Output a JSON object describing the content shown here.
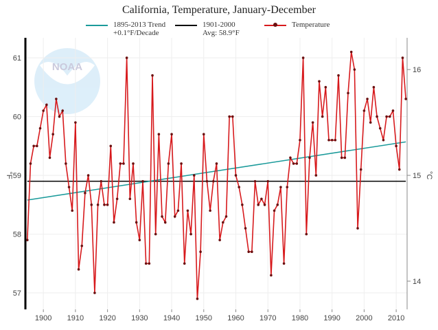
{
  "chart_data": {
    "type": "line",
    "title": "California, Temperature, January-December",
    "ylabel": "°F",
    "ylabel_right": "°C",
    "xlim": [
      1894.4,
      2013.4
    ],
    "ylim": [
      56.72,
      61.34
    ],
    "x_ticks": [
      1900,
      1910,
      1920,
      1930,
      1940,
      1950,
      1960,
      1970,
      1980,
      1990,
      2000,
      2010
    ],
    "y_ticks": [
      57,
      58,
      59,
      60,
      61
    ],
    "y_right_ticks": [
      14,
      15,
      16
    ],
    "grid": true,
    "legend_position": "top",
    "colors": {
      "temperature": "#d7191c",
      "trend": "#1a9a9a",
      "average": "#000000",
      "marker": "#6b1010"
    },
    "legend": {
      "trend_line1": "1895-2013 Trend",
      "trend_line2": "+0.1°F/Decade",
      "avg_line1": "1901-2000",
      "avg_line2": "Avg: 58.9°F",
      "temperature": "Temperature"
    },
    "trend": {
      "x": [
        1895,
        2013
      ],
      "y": [
        58.58,
        59.57
      ]
    },
    "average": 58.9,
    "series": [
      {
        "name": "Temperature",
        "x_start": 1895,
        "values": [
          57.9,
          59.2,
          59.5,
          59.5,
          59.8,
          60.1,
          60.2,
          59.3,
          59.7,
          60.3,
          60.0,
          60.1,
          59.2,
          58.8,
          58.4,
          59.9,
          57.4,
          57.8,
          58.7,
          59.0,
          58.5,
          57.0,
          58.5,
          58.9,
          58.5,
          58.5,
          59.5,
          58.2,
          58.6,
          59.2,
          59.2,
          61.0,
          58.6,
          59.2,
          58.2,
          57.9,
          58.9,
          57.5,
          57.5,
          60.7,
          58.0,
          59.7,
          58.3,
          58.2,
          59.2,
          59.7,
          58.3,
          58.4,
          59.2,
          57.5,
          58.4,
          58.0,
          59.0,
          56.9,
          57.7,
          59.7,
          58.9,
          58.4,
          58.9,
          59.2,
          57.9,
          58.2,
          58.3,
          60.0,
          60.0,
          59.0,
          58.8,
          58.5,
          58.1,
          57.7,
          57.7,
          58.9,
          58.5,
          58.6,
          58.5,
          58.9,
          57.3,
          58.4,
          58.5,
          58.8,
          57.5,
          58.8,
          59.3,
          59.2,
          59.2,
          59.6,
          61.0,
          58.0,
          59.3,
          59.9,
          59.0,
          60.6,
          60.0,
          60.5,
          59.6,
          59.6,
          59.6,
          60.7,
          59.3,
          59.3,
          60.4,
          61.1,
          60.8,
          58.1,
          59.1,
          60.1,
          60.3,
          59.9,
          60.5,
          60.0,
          59.8,
          59.6,
          60.0,
          60.0,
          60.1,
          59.5,
          59.1,
          61.0,
          60.3
        ]
      }
    ]
  },
  "watermark": "NOAA"
}
